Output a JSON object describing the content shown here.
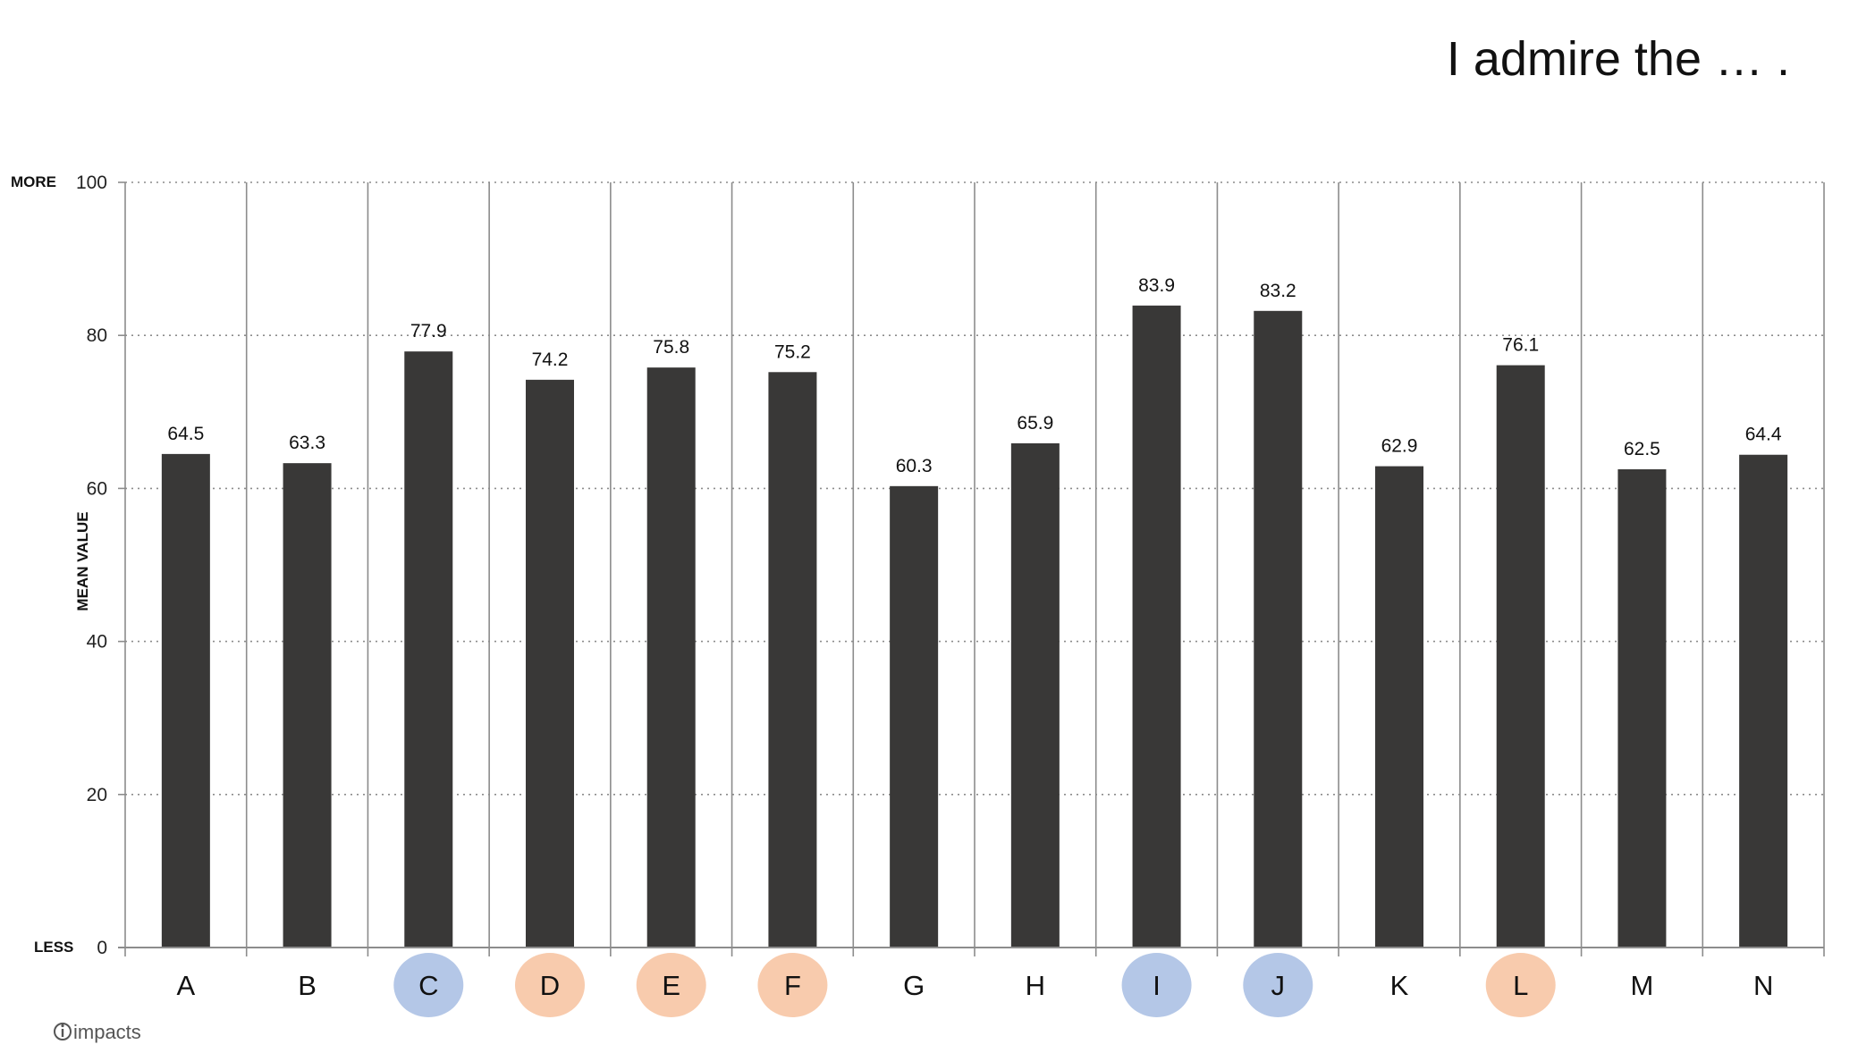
{
  "chart_data": {
    "type": "bar",
    "title": "I admire the … .",
    "ylabel": "MEAN VALUE",
    "ylim": [
      0,
      100
    ],
    "yticks": [
      0,
      20,
      40,
      60,
      80,
      100
    ],
    "y_top_label": "MORE",
    "y_bottom_label": "LESS",
    "grid": "horizontal-dotted",
    "categories": [
      "A",
      "B",
      "C",
      "D",
      "E",
      "F",
      "G",
      "H",
      "I",
      "J",
      "K",
      "L",
      "M",
      "N"
    ],
    "values": [
      64.5,
      63.3,
      77.9,
      74.2,
      75.8,
      75.2,
      60.3,
      65.9,
      83.9,
      83.2,
      62.9,
      76.1,
      62.5,
      64.4
    ],
    "value_labels": [
      "64.5",
      "63.3",
      "77.9",
      "74.2",
      "75.8",
      "75.2",
      "60.3",
      "65.9",
      "83.9",
      "83.2",
      "62.9",
      "76.1",
      "62.5",
      "64.4"
    ],
    "category_highlight": [
      "none",
      "none",
      "blue",
      "orange",
      "orange",
      "orange",
      "none",
      "none",
      "blue",
      "blue",
      "none",
      "orange",
      "none",
      "none"
    ],
    "colors": {
      "bar": "#393837",
      "blue": "#b4c7e7",
      "orange": "#f8cbad",
      "grid": "#8c8c8c",
      "axis": "#8c8c8c"
    }
  },
  "brand": {
    "logo_text": "impacts",
    "logo_icon": "info-circle-icon"
  }
}
